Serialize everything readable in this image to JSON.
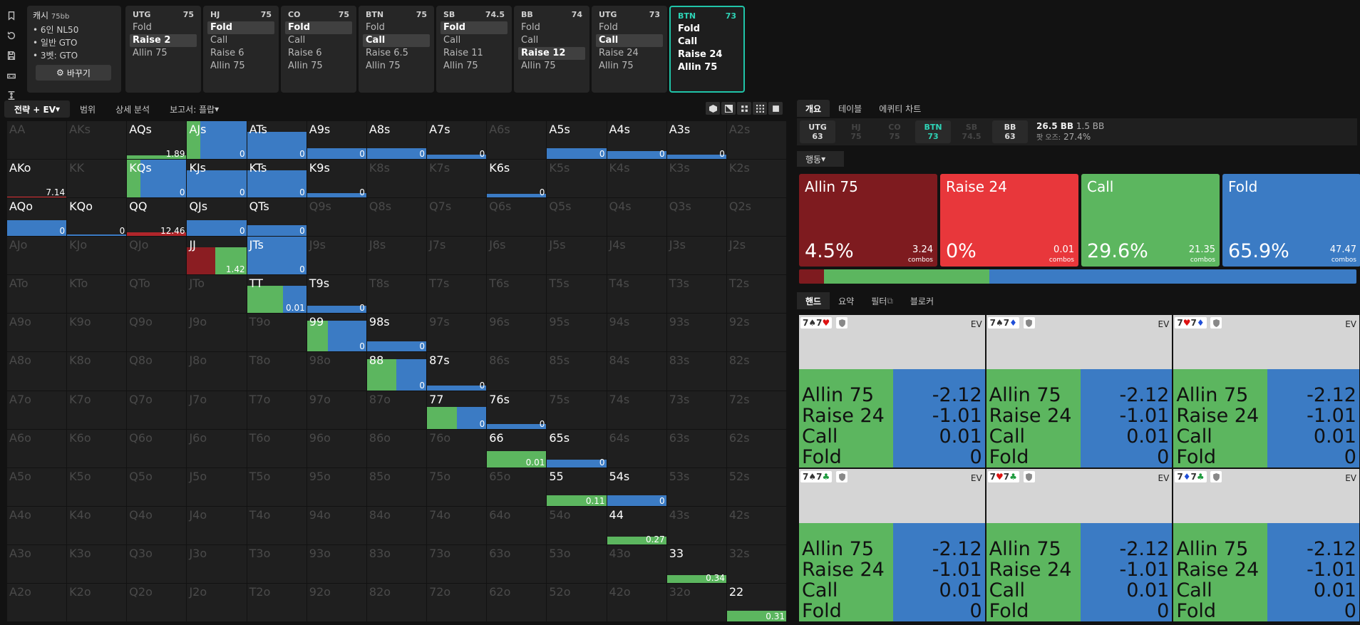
{
  "setup": {
    "title": "캐시",
    "stack": "75bb",
    "bullets": [
      "6인 NL50",
      "일반 GTO",
      "3벳: GTO"
    ],
    "change_label": "바꾸기"
  },
  "positions": [
    {
      "name": "UTG",
      "stack": "75",
      "options": [
        "Fold",
        "Raise 2",
        "Allin 75"
      ],
      "selected": 1
    },
    {
      "name": "HJ",
      "stack": "75",
      "options": [
        "Fold",
        "Call",
        "Raise 6",
        "Allin 75"
      ],
      "selected": 0
    },
    {
      "name": "CO",
      "stack": "75",
      "options": [
        "Fold",
        "Call",
        "Raise 6",
        "Allin 75"
      ],
      "selected": 0
    },
    {
      "name": "BTN",
      "stack": "75",
      "options": [
        "Fold",
        "Call",
        "Raise 6.5",
        "Allin 75"
      ],
      "selected": 1
    },
    {
      "name": "SB",
      "stack": "74.5",
      "options": [
        "Fold",
        "Call",
        "Raise 11",
        "Allin 75"
      ],
      "selected": 0
    },
    {
      "name": "BB",
      "stack": "74",
      "options": [
        "Fold",
        "Call",
        "Raise 12",
        "Allin 75"
      ],
      "selected": 2
    },
    {
      "name": "UTG",
      "stack": "73",
      "options": [
        "Fold",
        "Call",
        "Raise 24",
        "Allin 75"
      ],
      "selected": 1
    },
    {
      "name": "BTN",
      "stack": "73",
      "options": [
        "Fold",
        "Call",
        "Raise 24",
        "Allin 75"
      ],
      "selected": -1,
      "active": true
    }
  ],
  "toolbar": {
    "strategy": "전략 + EV",
    "range": "범위",
    "detail": "상세 분석",
    "report": "보고서: 플랍"
  },
  "colors": {
    "allin": "#7e1b1f",
    "raise": "#e8373b",
    "call": "#5cb65f",
    "fold": "#3b7bc4",
    "accent": "#2ed3b6"
  },
  "right_tabs": [
    "개요",
    "테이블",
    "에퀴티 차트"
  ],
  "players": [
    {
      "pos": "UTG",
      "stack": "63",
      "state": "hi"
    },
    {
      "pos": "HJ",
      "stack": "75",
      "state": "dim"
    },
    {
      "pos": "CO",
      "stack": "75",
      "state": "dim"
    },
    {
      "pos": "BTN",
      "stack": "73",
      "state": "btn"
    },
    {
      "pos": "SB",
      "stack": "74.5",
      "state": "dim"
    },
    {
      "pos": "BB",
      "stack": "63",
      "state": "hi"
    }
  ],
  "pot": {
    "bb": "26.5 BB",
    "extra": "1.5 BB",
    "odds_label": "팟 오즈:",
    "odds": "27.4%"
  },
  "action_dropdown": "행동",
  "actions": [
    {
      "name": "Allin 75",
      "pct": "4.5%",
      "combos": "3.24",
      "combos_label": "combos",
      "color": "#7e1b1f",
      "freq": 4.5
    },
    {
      "name": "Raise 24",
      "pct": "0%",
      "combos": "0.01",
      "combos_label": "combos",
      "color": "#e8373b",
      "freq": 0
    },
    {
      "name": "Call",
      "pct": "29.6%",
      "combos": "21.35",
      "combos_label": "combos",
      "color": "#5cb65f",
      "freq": 29.6
    },
    {
      "name": "Fold",
      "pct": "65.9%",
      "combos": "47.47",
      "combos_label": "combos",
      "color": "#3b7bc4",
      "freq": 65.9
    }
  ],
  "hand_tabs": [
    "핸드",
    "요약",
    "필터",
    "블로커"
  ],
  "hands": [
    {
      "cards": [
        [
          "7",
          "♠",
          "b"
        ],
        [
          "7",
          "♥",
          "r"
        ]
      ]
    },
    {
      "cards": [
        [
          "7",
          "♠",
          "b"
        ],
        [
          "7",
          "♦",
          "bl"
        ]
      ]
    },
    {
      "cards": [
        [
          "7",
          "♥",
          "r"
        ],
        [
          "7",
          "♦",
          "bl"
        ]
      ]
    },
    {
      "cards": [
        [
          "7",
          "♠",
          "b"
        ],
        [
          "7",
          "♣",
          "g"
        ]
      ]
    },
    {
      "cards": [
        [
          "7",
          "♥",
          "r"
        ],
        [
          "7",
          "♣",
          "g"
        ]
      ]
    },
    {
      "cards": [
        [
          "7",
          "♦",
          "bl"
        ],
        [
          "7",
          "♣",
          "g"
        ]
      ]
    }
  ],
  "hand_ev_label": "EV",
  "hand_lines": [
    [
      "Allin 75",
      "-2.12"
    ],
    [
      "Raise 24",
      "-1.01"
    ],
    [
      "Call",
      "0.01"
    ],
    [
      "Fold",
      "0"
    ]
  ],
  "matrix": {
    "ranks": [
      "A",
      "K",
      "Q",
      "J",
      "T",
      "9",
      "8",
      "7",
      "6",
      "5",
      "4",
      "3",
      "2"
    ],
    "cells": {
      "AQs": {
        "h": 10,
        "mix": [
          [
            100,
            "#5cb65f"
          ]
        ],
        "ev": "1.89"
      },
      "AJs": {
        "h": 100,
        "mix": [
          [
            22,
            "#5cb65f"
          ],
          [
            78,
            "#3b7bc4"
          ]
        ],
        "ev": "0"
      },
      "ATs": {
        "h": 72,
        "mix": [
          [
            100,
            "#3b7bc4"
          ]
        ],
        "ev": "0"
      },
      "A9s": {
        "h": 28,
        "mix": [
          [
            100,
            "#3b7bc4"
          ]
        ],
        "ev": "0"
      },
      "A8s": {
        "h": 28,
        "mix": [
          [
            100,
            "#3b7bc4"
          ]
        ],
        "ev": "0"
      },
      "A7s": {
        "h": 12,
        "mix": [
          [
            100,
            "#3b7bc4"
          ]
        ],
        "ev": "0"
      },
      "A5s": {
        "h": 28,
        "mix": [
          [
            100,
            "#3b7bc4"
          ]
        ],
        "ev": "0"
      },
      "A4s": {
        "h": 20,
        "mix": [
          [
            100,
            "#3b7bc4"
          ]
        ],
        "ev": "0"
      },
      "A3s": {
        "h": 12,
        "mix": [
          [
            100,
            "#3b7bc4"
          ]
        ],
        "ev": "0"
      },
      "AKo": {
        "h": 3,
        "mix": [
          [
            100,
            "#e8373b"
          ]
        ],
        "ev": "7.14"
      },
      "KQs": {
        "h": 100,
        "mix": [
          [
            22,
            "#5cb65f"
          ],
          [
            78,
            "#3b7bc4"
          ]
        ],
        "ev": "0"
      },
      "KJs": {
        "h": 72,
        "mix": [
          [
            100,
            "#3b7bc4"
          ]
        ],
        "ev": "0"
      },
      "KTs": {
        "h": 72,
        "mix": [
          [
            100,
            "#3b7bc4"
          ]
        ],
        "ev": "0"
      },
      "K9s": {
        "h": 12,
        "mix": [
          [
            100,
            "#3b7bc4"
          ]
        ],
        "ev": "0"
      },
      "K6s": {
        "h": 10,
        "mix": [
          [
            100,
            "#3b7bc4"
          ]
        ],
        "ev": "0"
      },
      "AQo": {
        "h": 42,
        "mix": [
          [
            100,
            "#3b7bc4"
          ]
        ],
        "ev": "0"
      },
      "KQo": {
        "h": 5,
        "mix": [
          [
            100,
            "#3b7bc4"
          ]
        ],
        "ev": "0"
      },
      "QQ": {
        "h": 10,
        "mix": [
          [
            100,
            "#b0262b"
          ]
        ],
        "ev": "12.46"
      },
      "QJs": {
        "h": 42,
        "mix": [
          [
            100,
            "#3b7bc4"
          ]
        ],
        "ev": "0"
      },
      "QTs": {
        "h": 28,
        "mix": [
          [
            100,
            "#3b7bc4"
          ]
        ],
        "ev": "0"
      },
      "JJ": {
        "h": 72,
        "mix": [
          [
            48,
            "#8b1d22"
          ],
          [
            52,
            "#5cb65f"
          ]
        ],
        "ev": "1.42"
      },
      "JTs": {
        "h": 100,
        "mix": [
          [
            100,
            "#3b7bc4"
          ]
        ],
        "ev": "0"
      },
      "TT": {
        "h": 72,
        "mix": [
          [
            60,
            "#5cb65f"
          ],
          [
            40,
            "#3b7bc4"
          ]
        ],
        "ev": "0.01"
      },
      "T9s": {
        "h": 20,
        "mix": [
          [
            100,
            "#3b7bc4"
          ]
        ],
        "ev": "0"
      },
      "99": {
        "h": 82,
        "mix": [
          [
            35,
            "#5cb65f"
          ],
          [
            65,
            "#3b7bc4"
          ]
        ],
        "ev": "0"
      },
      "98s": {
        "h": 28,
        "mix": [
          [
            100,
            "#3b7bc4"
          ]
        ],
        "ev": "0"
      },
      "88": {
        "h": 82,
        "mix": [
          [
            50,
            "#5cb65f"
          ],
          [
            50,
            "#3b7bc4"
          ]
        ],
        "ev": "0"
      },
      "87s": {
        "h": 12,
        "mix": [
          [
            100,
            "#3b7bc4"
          ]
        ],
        "ev": "0"
      },
      "77": {
        "h": 58,
        "mix": [
          [
            50,
            "#5cb65f"
          ],
          [
            50,
            "#3b7bc4"
          ]
        ],
        "ev": "0"
      },
      "76s": {
        "h": 12,
        "mix": [
          [
            100,
            "#3b7bc4"
          ]
        ],
        "ev": "0"
      },
      "66": {
        "h": 42,
        "mix": [
          [
            100,
            "#5cb65f"
          ]
        ],
        "ev": "0.01"
      },
      "65s": {
        "h": 20,
        "mix": [
          [
            100,
            "#3b7bc4"
          ]
        ],
        "ev": "0"
      },
      "55": {
        "h": 28,
        "mix": [
          [
            100,
            "#5cb65f"
          ]
        ],
        "ev": "0.11"
      },
      "54s": {
        "h": 28,
        "mix": [
          [
            100,
            "#3b7bc4"
          ]
        ],
        "ev": "0"
      },
      "44": {
        "h": 20,
        "mix": [
          [
            100,
            "#5cb65f"
          ]
        ],
        "ev": "0.27"
      },
      "33": {
        "h": 20,
        "mix": [
          [
            100,
            "#5cb65f"
          ]
        ],
        "ev": "0.34"
      },
      "22": {
        "h": 28,
        "mix": [
          [
            100,
            "#5cb65f"
          ]
        ],
        "ev": "0.31"
      }
    }
  }
}
